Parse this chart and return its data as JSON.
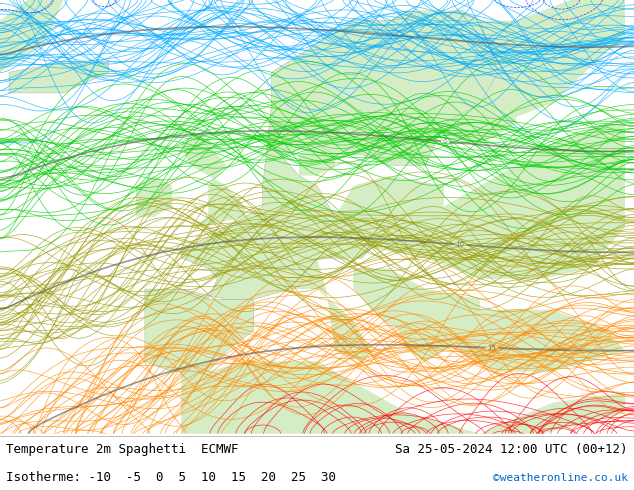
{
  "title_left": "Temperature 2m Spaghetti  ECMWF",
  "title_right": "Sa 25-05-2024 12:00 UTC (00+12)",
  "subtitle": "Isotherme: -10  -5  0  5  10  15  20  25  30",
  "credit": "©weatheronline.co.uk",
  "credit_color": "#0066cc",
  "bg_color": "#ffffff",
  "ocean_color": "#f0f0f0",
  "land_color": "#d4edc4",
  "text_color": "#000000",
  "figsize": [
    6.34,
    4.9
  ],
  "dpi": 100,
  "map_extent": [
    -25,
    45,
    30,
    72
  ],
  "isotherm_values": [
    -10,
    -5,
    0,
    5,
    10,
    15,
    20,
    25,
    30
  ],
  "isotherm_colors": [
    "#cc00cc",
    "#0000ff",
    "#00aaff",
    "#00cc00",
    "#999900",
    "#ff8800",
    "#ff0000",
    "#cc0000",
    "#660000"
  ],
  "n_members": 50,
  "seed": 42
}
